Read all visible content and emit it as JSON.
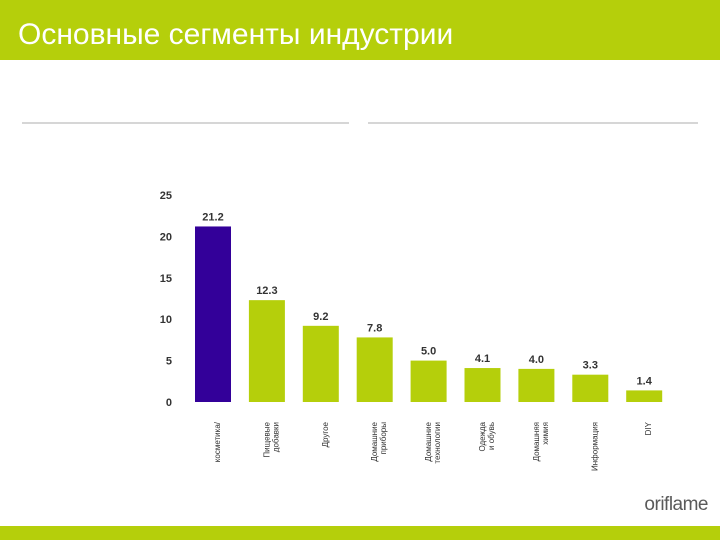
{
  "slide": {
    "title": "Основные сегменты индустрии",
    "logo": "oriflame"
  },
  "colors": {
    "accent": "#b5cf0b",
    "highlight_bar": "#330099",
    "bar": "#b5cf0b",
    "axis_text": "#333333",
    "divider": "#d6d6d6"
  },
  "chart_data": {
    "type": "bar",
    "title": "",
    "xlabel": "",
    "ylabel": "",
    "ylim": [
      0,
      25
    ],
    "yticks": [
      0,
      5,
      10,
      15,
      20,
      25
    ],
    "grid": false,
    "categories": [
      "косметика/",
      "Пищевые\nдобавки",
      "Другое",
      "Домашние\nприборы",
      "Домашние\nтехнологии",
      "Одежда\nи обувь",
      "Домашняя\nхимия",
      "Информация",
      "DIY"
    ],
    "values": [
      21.2,
      12.3,
      9.2,
      7.8,
      5.0,
      4.1,
      4.0,
      3.3,
      1.4
    ],
    "value_labels": [
      "21.2",
      "12.3",
      "9.2",
      "7.8",
      "5.0",
      "4.1",
      "4.0",
      "3.3",
      "1.4"
    ],
    "highlight_index": 0
  }
}
